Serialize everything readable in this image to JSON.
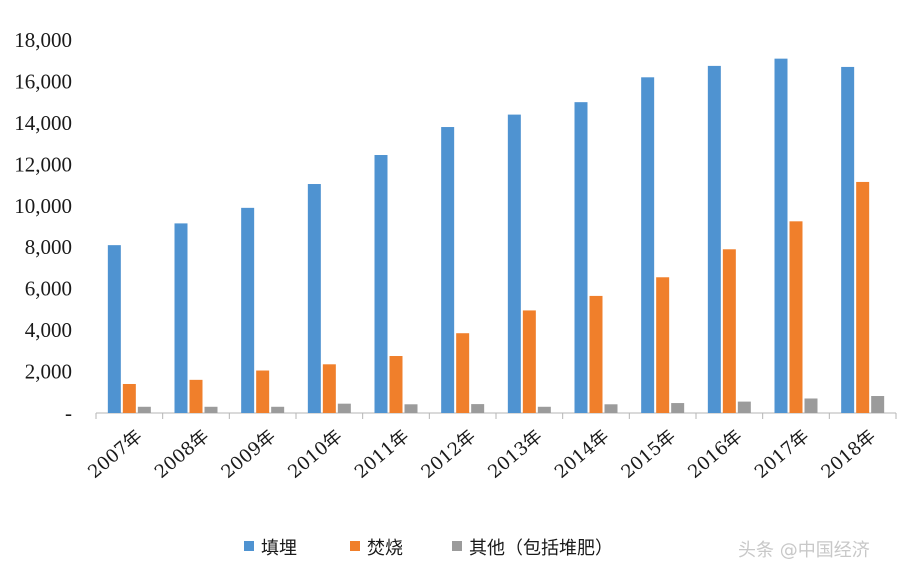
{
  "chart_data": {
    "type": "bar",
    "categories": [
      "2007年",
      "2008年",
      "2009年",
      "2010年",
      "2011年",
      "2012年",
      "2013年",
      "2014年",
      "2015年",
      "2016年",
      "2017年",
      "2018年"
    ],
    "series": [
      {
        "name": "填埋",
        "color": "#4f93d1",
        "values": [
          8100,
          9150,
          9900,
          11050,
          12450,
          13800,
          14400,
          15000,
          16200,
          16750,
          17100,
          16700
        ]
      },
      {
        "name": "焚烧",
        "color": "#f07f2b",
        "values": [
          1400,
          1600,
          2050,
          2350,
          2750,
          3850,
          4950,
          5650,
          6550,
          7900,
          9250,
          11150
        ]
      },
      {
        "name": "其他（包括堆肥）",
        "color": "#9b9b9b",
        "values": [
          300,
          300,
          300,
          450,
          420,
          430,
          300,
          420,
          480,
          550,
          700,
          820
        ]
      }
    ],
    "ylim": [
      0,
      18000
    ],
    "yticks": [
      0,
      2000,
      4000,
      6000,
      8000,
      10000,
      12000,
      14000,
      16000,
      18000
    ],
    "ytick_labels": [
      "-",
      "2,000",
      "4,000",
      "6,000",
      "8,000",
      "10,000",
      "12,000",
      "14,000",
      "16,000",
      "18,000"
    ],
    "title": "",
    "xlabel": "",
    "ylabel": "",
    "grid": false,
    "legend_position": "bottom"
  },
  "watermark": "头条 @中国经济"
}
